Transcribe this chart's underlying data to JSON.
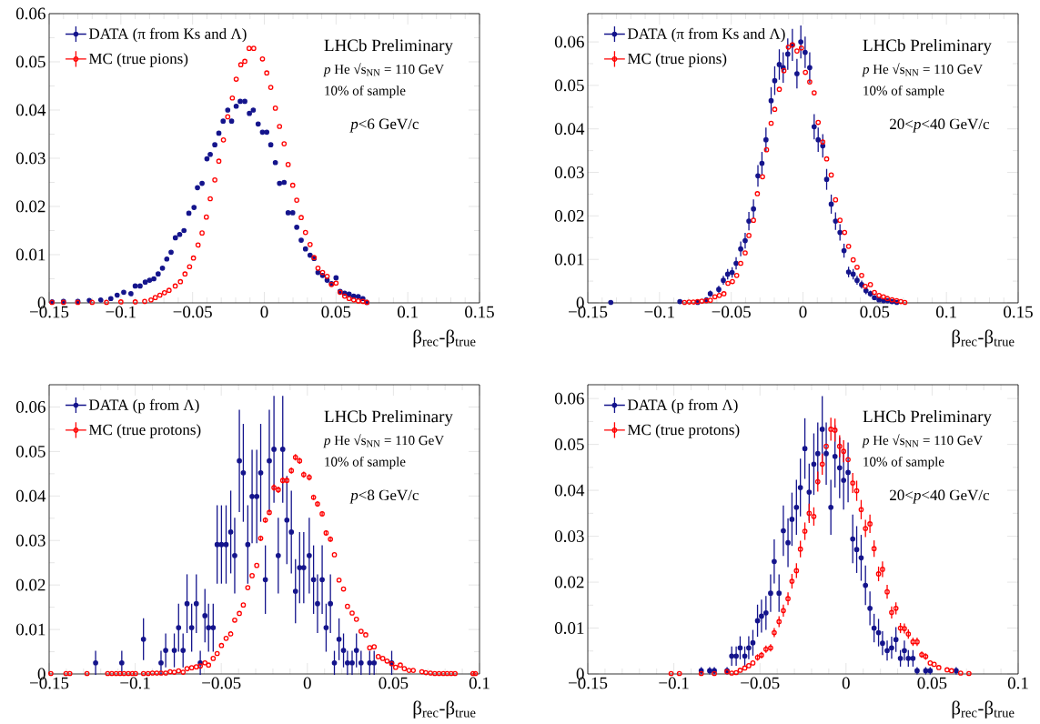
{
  "chart_data": [
    {
      "type": "scatter",
      "xlabel": "β$_{rec}$-β$_{true}$",
      "legend": "top left",
      "marker": "circle",
      "xlim": [
        -0.15,
        0.15
      ],
      "ylim": [
        0,
        0.06
      ],
      "xticks": [
        {
          "value": -0.15,
          "label": "−0.15"
        },
        {
          "value": -0.1,
          "label": "−0.1"
        },
        {
          "value": -0.05,
          "label": "−0.05"
        },
        0,
        0.05,
        0.1,
        0.15
      ],
      "yticks": [
        0,
        0.01,
        0.02,
        0.03,
        0.04,
        0.05,
        0.06
      ],
      "annotations": [
        "LHCb Preliminary",
        "*p* He √s$_{NN}$ = 110 GeV",
        "10% of sample",
        "*p*<6 GeV/c"
      ],
      "series": [
        {
          "name": "DATA (π from Ks and Λ)",
          "color": "#14148c",
          "x": [
            -0.148,
            -0.14,
            -0.13,
            -0.122,
            -0.114,
            -0.107,
            -0.1026,
            -0.098,
            -0.093,
            -0.09,
            -0.0866,
            -0.083,
            -0.08,
            -0.077,
            -0.074,
            -0.071,
            -0.068,
            -0.065,
            -0.062,
            -0.059,
            -0.056,
            -0.0526,
            -0.049,
            -0.0466,
            -0.0434,
            -0.04,
            -0.0377,
            -0.0345,
            -0.0317,
            -0.0287,
            -0.0255,
            -0.0228,
            -0.0196,
            -0.0168,
            -0.0136,
            -0.0104,
            -0.0077,
            -0.0043,
            -0.0013,
            0.0017,
            0.0045,
            0.0077,
            0.0106,
            0.0138,
            0.0166,
            0.0198,
            0.0226,
            0.0257,
            0.0287,
            0.0319,
            0.0347,
            0.0374,
            0.0406,
            0.0438,
            0.0468,
            0.05,
            0.0528,
            0.056,
            0.0591,
            0.0623,
            0.0655,
            0.0687,
            0.0715
          ],
          "values": [
            0.0002,
            0.0003,
            0.0003,
            0.0005,
            0.0006,
            0.0009,
            0.0016,
            0.0022,
            0.0019,
            0.0035,
            0.0035,
            0.0043,
            0.0047,
            0.005,
            0.006,
            0.0072,
            0.0091,
            0.0105,
            0.0135,
            0.0142,
            0.015,
            0.0186,
            0.0198,
            0.0239,
            0.0248,
            0.0299,
            0.0308,
            0.0328,
            0.0352,
            0.0377,
            0.04,
            0.0377,
            0.0408,
            0.0418,
            0.0418,
            0.0393,
            0.04,
            0.0371,
            0.0354,
            0.0354,
            0.0328,
            0.0291,
            0.0248,
            0.025,
            0.0187,
            0.0187,
            0.0157,
            0.013,
            0.0112,
            0.0099,
            0.0092,
            0.0063,
            0.0057,
            0.0047,
            0.004,
            0.0052,
            0.0024,
            0.002,
            0.0018,
            0.0014,
            0.0013,
            0.0009,
            0.0001
          ]
        },
        {
          "name": "MC (true pions)",
          "color": "#ff0000",
          "x": [
            -0.148,
            -0.14,
            -0.13,
            -0.12,
            -0.11,
            -0.1,
            -0.09,
            -0.0834,
            -0.079,
            -0.076,
            -0.0728,
            -0.0696,
            -0.0664,
            -0.0621,
            -0.0585,
            -0.0553,
            -0.0521,
            -0.0494,
            -0.0462,
            -0.0434,
            -0.0404,
            -0.0377,
            -0.0345,
            -0.0317,
            -0.0285,
            -0.0255,
            -0.0223,
            -0.0196,
            -0.0164,
            -0.0136,
            -0.0106,
            -0.0074,
            -0.0013,
            0.0017,
            0.0045,
            0.0077,
            0.0106,
            0.0138,
            0.0166,
            0.0198,
            0.0226,
            0.0257,
            0.0287,
            0.0319,
            0.0347,
            0.0374,
            0.0406,
            0.0438,
            0.0468,
            0.05,
            0.0528,
            0.056,
            0.0591,
            0.0623,
            0.0655,
            0.0687,
            0.0715
          ],
          "values": [
            0.0001,
            0.0001,
            0.0001,
            0.0001,
            0.0001,
            0.0002,
            0.0002,
            0.0003,
            0.0006,
            0.0011,
            0.0016,
            0.0021,
            0.0026,
            0.0035,
            0.0044,
            0.006,
            0.0075,
            0.0093,
            0.012,
            0.0145,
            0.0178,
            0.0216,
            0.0255,
            0.0294,
            0.0338,
            0.0386,
            0.0425,
            0.0464,
            0.0494,
            0.0501,
            0.0528,
            0.0528,
            0.0506,
            0.0477,
            0.0447,
            0.0404,
            0.0366,
            0.033,
            0.0287,
            0.0244,
            0.0213,
            0.0177,
            0.0146,
            0.0121,
            0.0094,
            0.0072,
            0.0063,
            0.0055,
            0.0038,
            0.0041,
            0.0022,
            0.0014,
            0.0009,
            0.0006,
            0.0004,
            0.0003,
            0.0001
          ]
        }
      ]
    },
    {
      "type": "scatter",
      "xlabel": "β$_{rec}$-β$_{true}$",
      "legend": "top left",
      "marker": "circle",
      "xlim": [
        -0.15,
        0.15
      ],
      "ylim": [
        0,
        0.0665
      ],
      "xticks": [
        {
          "value": -0.15,
          "label": "−0.15"
        },
        {
          "value": -0.1,
          "label": "−0.1"
        },
        {
          "value": -0.05,
          "label": "−0.05"
        },
        0,
        0.05,
        0.1,
        0.15
      ],
      "yticks": [
        0,
        0.01,
        0.02,
        0.03,
        0.04,
        0.05,
        0.06
      ],
      "annotations": [
        "LHCb Preliminary",
        "*p* He √s$_{NN}$ = 110 GeV",
        "10% of sample",
        "20<*p*<40 GeV/c"
      ],
      "series": [
        {
          "name": "DATA (π from Ks and Λ)",
          "color": "#14148c",
          "x": [
            -0.134,
            -0.0858,
            -0.0735,
            -0.0674,
            -0.0646,
            -0.0587,
            -0.0555,
            -0.0525,
            -0.0494,
            -0.0466,
            -0.0434,
            -0.0403,
            -0.0377,
            -0.0345,
            -0.0314,
            -0.0286,
            -0.0258,
            -0.0222,
            -0.0197,
            -0.0165,
            -0.0138,
            -0.0106,
            -0.0074,
            -0.0042,
            -0.0015,
            0.0015,
            0.0047,
            0.0078,
            0.0106,
            0.0138,
            0.0165,
            0.0197,
            0.0227,
            0.0258,
            0.0286,
            0.0318,
            0.035,
            0.0377,
            0.0409,
            0.0439,
            0.047,
            0.0498,
            0.053,
            0.0561,
            0.0589,
            0.0621,
            0.0653
          ],
          "values": [
            0.0001,
            0.0003,
            0.0001,
            0.0007,
            0.0021,
            0.0031,
            0.0052,
            0.0066,
            0.007,
            0.0091,
            0.0124,
            0.0143,
            0.0188,
            0.0216,
            0.0292,
            0.0321,
            0.0375,
            0.0465,
            0.0511,
            0.0548,
            0.0541,
            0.0572,
            0.0593,
            0.0527,
            0.06,
            0.0576,
            0.0541,
            0.0405,
            0.0375,
            0.0361,
            0.0284,
            0.0227,
            0.0188,
            0.0162,
            0.012,
            0.0071,
            0.0066,
            0.0052,
            0.0042,
            0.0028,
            0.0021,
            0.0012,
            0.0007,
            0.0005,
            0.0005,
            0.0003,
            0.0001
          ],
          "errors": [
            null,
            null,
            null,
            null,
            0.0007,
            0.0008,
            0.001,
            0.0012,
            0.0012,
            0.0014,
            0.0017,
            0.0018,
            0.0021,
            0.0022,
            0.0025,
            0.0026,
            0.0028,
            0.0031,
            0.0033,
            0.0035,
            0.0035,
            0.0036,
            0.0037,
            0.0034,
            0.0038,
            0.0036,
            0.0035,
            0.0029,
            0.0028,
            0.0027,
            0.0024,
            0.0022,
            0.002,
            0.0019,
            0.0016,
            0.0012,
            0.0012,
            0.001,
            0.0009,
            0.0008,
            0.0007,
            null,
            null,
            null,
            null,
            null,
            null
          ]
        },
        {
          "name": "MC (true pions)",
          "color": "#ff0000",
          "x": [
            -0.0826,
            -0.0794,
            -0.0764,
            -0.0735,
            -0.0705,
            -0.0674,
            -0.0646,
            -0.0614,
            -0.0583,
            -0.0551,
            -0.0523,
            -0.0492,
            -0.0462,
            -0.0434,
            -0.0403,
            -0.0377,
            -0.0345,
            -0.0318,
            -0.0282,
            -0.0254,
            -0.0222,
            -0.0197,
            -0.0165,
            -0.0133,
            -0.0102,
            -0.0074,
            -0.0042,
            -0.0011,
            0.0017,
            0.0047,
            0.0078,
            0.0106,
            0.0138,
            0.0165,
            0.0197,
            0.0227,
            0.0258,
            0.029,
            0.0318,
            0.035,
            0.0377,
            0.0409,
            0.0434,
            0.047,
            0.0498,
            0.053,
            0.0561,
            0.0589,
            0.0621,
            0.0653,
            0.0682,
            0.071
          ],
          "values": [
            0.0001,
            0.0002,
            0.0002,
            0.0003,
            0.0004,
            0.0005,
            0.0006,
            0.0014,
            0.0017,
            0.0021,
            0.0045,
            0.0049,
            0.0063,
            0.0091,
            0.0115,
            0.0155,
            0.019,
            0.0251,
            0.029,
            0.0352,
            0.0413,
            0.0445,
            0.0491,
            0.0534,
            0.0588,
            0.0593,
            0.0579,
            0.0586,
            0.053,
            0.0508,
            0.0483,
            0.0415,
            0.037,
            0.0331,
            0.0294,
            0.0237,
            0.019,
            0.0162,
            0.013,
            0.0099,
            0.0082,
            0.0063,
            0.0038,
            0.0042,
            0.0024,
            0.0017,
            0.0014,
            0.001,
            0.0007,
            0.0005,
            0.0003,
            0.0001
          ]
        }
      ]
    },
    {
      "type": "scatter",
      "xlabel": "β$_{rec}$-β$_{true}$",
      "legend": "top left",
      "marker": "circle",
      "xlim": [
        -0.15,
        0.1
      ],
      "ylim": [
        0,
        0.065
      ],
      "xticks": [
        {
          "value": -0.15,
          "label": "−0.15"
        },
        {
          "value": -0.1,
          "label": "−0.1"
        },
        {
          "value": -0.05,
          "label": "−0.05"
        },
        0,
        0.05,
        0.1
      ],
      "yticks": [
        0,
        0.01,
        0.02,
        0.03,
        0.04,
        0.05,
        0.06
      ],
      "annotations": [
        "LHCb Preliminary",
        "*p* He √s$_{NN}$ = 110 GeV",
        "10% of sample",
        "*p*<8 GeV/c"
      ],
      "series": [
        {
          "name": "DATA (p from Λ)",
          "color": "#14148c",
          "x": [
            -0.123,
            -0.1078,
            -0.0952,
            -0.085,
            -0.0823,
            -0.0773,
            -0.0748,
            -0.0722,
            -0.0699,
            -0.0672,
            -0.0645,
            -0.0622,
            -0.0595,
            -0.0574,
            -0.0547,
            -0.0524,
            -0.0499,
            -0.0472,
            -0.0445,
            -0.0422,
            -0.0395,
            -0.0372,
            -0.0346,
            -0.0321,
            -0.0294,
            -0.0271,
            -0.0244,
            -0.0221,
            -0.0194,
            -0.0169,
            -0.0143,
            -0.0119,
            -0.0093,
            -0.0069,
            -0.0045,
            -0.0021,
            0.0011,
            0.0036,
            0.0059,
            0.0086,
            0.0109,
            0.0134,
            0.0157,
            0.0184,
            0.021,
            0.0233,
            0.026,
            0.0285,
            0.0312,
            0.0362,
            0.0388,
            0.049
          ],
          "values": [
            0.0025,
            0.0025,
            0.0078,
            0.0025,
            0.0053,
            0.0053,
            0.0104,
            0.0053,
            0.0158,
            0.0104,
            0.0158,
            0.0025,
            0.0131,
            0.0104,
            0.0104,
            0.0291,
            0.0291,
            0.0291,
            0.0319,
            0.0266,
            0.0479,
            0.0452,
            0.0291,
            0.0399,
            0.0399,
            0.0452,
            0.0212,
            0.0479,
            0.0505,
            0.0266,
            0.0505,
            0.0346,
            0.0319,
            0.0186,
            0.0239,
            0.0239,
            0.0266,
            0.0212,
            0.0158,
            0.0212,
            0.0104,
            0.0158,
            0.0025,
            0.0078,
            0.0053,
            0.0025,
            0.0025,
            0.0053,
            0.0025,
            0.0025,
            0.0025,
            0.0025
          ],
          "errors": [
            0.0027,
            0.0027,
            0.0047,
            0.0027,
            0.0038,
            0.0038,
            0.0054,
            0.0038,
            0.0066,
            0.0054,
            0.0066,
            0.0027,
            0.006,
            0.0054,
            0.0054,
            0.0088,
            0.0088,
            0.0088,
            0.0093,
            0.0085,
            0.0115,
            0.011,
            0.0088,
            0.0105,
            0.0105,
            0.011,
            0.0077,
            0.0115,
            0.012,
            0.0085,
            0.012,
            0.0099,
            0.0093,
            0.0072,
            0.008,
            0.008,
            0.0085,
            0.0077,
            0.0066,
            0.0077,
            0.0054,
            0.0066,
            0.0027,
            0.0047,
            0.0038,
            0.0027,
            0.0027,
            0.0038,
            0.0027,
            0.0027,
            0.0027,
            0.0027
          ]
        },
        {
          "name": "MC (true protons)",
          "color": "#ff0000",
          "x": [
            -0.149,
            -0.1402,
            -0.138,
            -0.128,
            -0.116,
            -0.1136,
            -0.1111,
            -0.1088,
            -0.1065,
            -0.104,
            -0.1017,
            -0.0998,
            -0.0952,
            -0.0925,
            -0.09,
            -0.0875,
            -0.085,
            -0.0823,
            -0.0797,
            -0.0773,
            -0.0748,
            -0.0722,
            -0.0699,
            -0.0672,
            -0.0645,
            -0.0622,
            -0.0595,
            -0.0574,
            -0.0547,
            -0.0524,
            -0.0499,
            -0.0472,
            -0.0445,
            -0.0422,
            -0.0395,
            -0.0372,
            -0.0346,
            -0.0321,
            -0.0294,
            -0.0271,
            -0.0244,
            -0.0221,
            -0.0194,
            -0.0169,
            -0.0143,
            -0.0119,
            -0.0093,
            -0.0069,
            -0.0045,
            -0.0021,
            0.0011,
            0.0036,
            0.0059,
            0.0086,
            0.0109,
            0.0134,
            0.0157,
            0.0184,
            0.021,
            0.0233,
            0.026,
            0.0285,
            0.0312,
            0.0339,
            0.0362,
            0.0388,
            0.0412,
            0.0438,
            0.0463,
            0.049,
            0.0513,
            0.054,
            0.0563,
            0.059,
            0.0615,
            0.0665,
            0.0688,
            0.0715,
            0.074,
            0.0765,
            0.079,
            0.0812,
            0.0835,
            0.0858,
            0.0962,
            0.0976
          ],
          "values": [
            0.0001,
            0.0001,
            0.0001,
            0.0001,
            0.0001,
            0.0001,
            0.0001,
            0.0001,
            0.0001,
            0.0001,
            0.0001,
            0.0001,
            0.0001,
            0.0001,
            0.0002,
            0.0002,
            0.0002,
            0.0002,
            0.0005,
            0.0004,
            0.0007,
            0.0004,
            0.0012,
            0.0014,
            0.0016,
            0.0018,
            0.0025,
            0.002,
            0.0035,
            0.0046,
            0.0064,
            0.008,
            0.009,
            0.0121,
            0.0136,
            0.0155,
            0.0194,
            0.0221,
            0.0244,
            0.0305,
            0.0346,
            0.0363,
            0.0419,
            0.0414,
            0.0435,
            0.0435,
            0.0457,
            0.0487,
            0.0479,
            0.0448,
            0.0442,
            0.0397,
            0.0382,
            0.036,
            0.0317,
            0.0303,
            0.0268,
            0.0211,
            0.0191,
            0.0152,
            0.0137,
            0.0123,
            0.0096,
            0.0088,
            0.0059,
            0.0061,
            0.0039,
            0.0035,
            0.0029,
            0.0023,
            0.0015,
            0.002,
            0.0012,
            0.0008,
            0.0008,
            0.0005,
            0.0003,
            0.0002,
            0.0001,
            0.0001,
            0.0001,
            0.0001,
            0.0001,
            0.0001,
            0.0001,
            0.0001
          ],
          "errors": [
            null,
            null,
            null,
            null,
            null,
            null,
            null,
            null,
            null,
            null,
            null,
            null,
            null,
            null,
            null,
            null,
            null,
            null,
            null,
            null,
            null,
            null,
            null,
            null,
            null,
            null,
            null,
            null,
            null,
            null,
            null,
            null,
            null,
            null,
            null,
            null,
            null,
            null,
            null,
            0.0006,
            0.0006,
            0.0006,
            0.0007,
            0.0007,
            0.0007,
            0.0007,
            0.0007,
            0.0007,
            0.0007,
            0.0007,
            0.0007,
            0.0006,
            0.0006,
            0.0006,
            0.0006,
            0.0006,
            null,
            null,
            null,
            null,
            null,
            null,
            null,
            null,
            null,
            null,
            null,
            null,
            null,
            null,
            null,
            null,
            null,
            null,
            null,
            null,
            null,
            null,
            null,
            null,
            null,
            null,
            null,
            null,
            null,
            null
          ]
        }
      ]
    },
    {
      "type": "scatter",
      "xlabel": "β$_{rec}$-β$_{true}$",
      "legend": "top left",
      "marker": "circle",
      "xlim": [
        -0.15,
        0.1
      ],
      "ylim": [
        0,
        0.063
      ],
      "xticks": [
        {
          "value": -0.15,
          "label": "−0.15"
        },
        {
          "value": -0.1,
          "label": "−0.1"
        },
        {
          "value": -0.05,
          "label": "−0.05"
        },
        0,
        0.05,
        0.1
      ],
      "yticks": [
        0,
        0.01,
        0.02,
        0.03,
        0.04,
        0.05,
        0.06
      ],
      "annotations": [
        "LHCb Preliminary",
        "*p* He √s$_{NN}$ = 110 GeV",
        "10% of sample",
        "20<*p*<40 GeV/c"
      ],
      "series": [
        {
          "name": "DATA (p from Λ)",
          "color": "#14148c",
          "x": [
            -0.0841,
            -0.0792,
            -0.0765,
            -0.0691,
            -0.0664,
            -0.0638,
            -0.0615,
            -0.0588,
            -0.0565,
            -0.0541,
            -0.0514,
            -0.0491,
            -0.0465,
            -0.0438,
            -0.0417,
            -0.0389,
            -0.0364,
            -0.0337,
            -0.0314,
            -0.0288,
            -0.0265,
            -0.0239,
            -0.0214,
            -0.0187,
            -0.0164,
            -0.0138,
            -0.0115,
            -0.0088,
            -0.0064,
            -0.0037,
            -0.0014,
            0.0012,
            0.0039,
            0.0062,
            0.0088,
            0.0113,
            0.0139,
            0.0163,
            0.0189,
            0.0212,
            0.0239,
            0.0265,
            0.029,
            0.0316,
            0.0339,
            0.0362,
            0.0389,
            0.0413,
            0.0463,
            0.0489,
            0.064
          ],
          "values": [
            0.0007,
            0.0007,
            0.0007,
            0.0007,
            0.0039,
            0.0039,
            0.0057,
            0.0039,
            0.0057,
            0.0068,
            0.0116,
            0.0126,
            0.0133,
            0.0176,
            0.0245,
            0.0176,
            0.0312,
            0.0286,
            0.0337,
            0.0363,
            0.0406,
            0.0491,
            0.0396,
            0.0457,
            0.048,
            0.0533,
            0.048,
            0.0363,
            0.0474,
            0.0449,
            0.0422,
            0.0439,
            0.0294,
            0.0271,
            0.0253,
            0.0193,
            0.0143,
            0.01,
            0.009,
            0.0067,
            0.0051,
            0.0057,
            0.0075,
            0.0034,
            0.0051,
            0.0034,
            0.0034,
            0.0007,
            0.0007,
            0.0007,
            0.0007
          ],
          "errors": [
            0.0008,
            0.0008,
            0.0008,
            0.0008,
            0.0021,
            0.0021,
            0.0025,
            0.0021,
            0.0025,
            0.0028,
            0.0035,
            0.0036,
            0.0037,
            0.0041,
            0.0048,
            0.0041,
            0.0055,
            0.0053,
            0.0058,
            0.006,
            0.0063,
            0.0066,
            0.0062,
            0.0067,
            0.0068,
            0.0072,
            0.0068,
            0.006,
            0.0068,
            0.0066,
            0.0064,
            0.0065,
            0.0053,
            0.0051,
            0.005,
            0.0043,
            0.0037,
            0.0031,
            0.003,
            0.0026,
            0.0022,
            0.0024,
            0.0027,
            0.0018,
            0.0022,
            0.0018,
            0.0018,
            0.0008,
            0.0008,
            0.0008,
            0.0008
          ]
        },
        {
          "name": "MC (true protons)",
          "color": "#ff0000",
          "x": [
            -0.1016,
            -0.0968,
            -0.0841,
            -0.0765,
            -0.0691,
            -0.0664,
            -0.0638,
            -0.0615,
            -0.0588,
            -0.0565,
            -0.0541,
            -0.0514,
            -0.0491,
            -0.0465,
            -0.0438,
            -0.0417,
            -0.0389,
            -0.0364,
            -0.0337,
            -0.0314,
            -0.0288,
            -0.0265,
            -0.0239,
            -0.0214,
            -0.0187,
            -0.0164,
            -0.0138,
            -0.0115,
            -0.0088,
            -0.0064,
            -0.0037,
            -0.0014,
            0.0012,
            0.0039,
            0.0062,
            0.0088,
            0.0113,
            0.0139,
            0.0163,
            0.0189,
            0.0212,
            0.0239,
            0.0265,
            0.029,
            0.0316,
            0.0339,
            0.0362,
            0.0389,
            0.0413,
            0.044,
            0.0463,
            0.0489,
            0.0512,
            0.0539,
            0.0587,
            0.0613,
            0.0666,
            0.0714
          ],
          "values": [
            0.0001,
            0.0001,
            0.0001,
            0.0001,
            0.0005,
            0.0002,
            0.0003,
            0.0008,
            0.0013,
            0.0018,
            0.0024,
            0.0036,
            0.0041,
            0.0054,
            0.0057,
            0.009,
            0.0114,
            0.0138,
            0.0164,
            0.0202,
            0.0225,
            0.0272,
            0.0311,
            0.035,
            0.0343,
            0.0419,
            0.0457,
            0.0496,
            0.0533,
            0.0531,
            0.0496,
            0.0485,
            0.0467,
            0.0416,
            0.0399,
            0.0358,
            0.0317,
            0.0327,
            0.0273,
            0.0218,
            0.0228,
            0.0179,
            0.0134,
            0.0143,
            0.01,
            0.0099,
            0.0087,
            0.007,
            0.007,
            0.0042,
            0.0038,
            0.0024,
            0.0021,
            0.0014,
            0.0009,
            0.0007,
            0.0002,
            0.0001
          ],
          "errors": [
            null,
            null,
            null,
            null,
            null,
            null,
            null,
            null,
            null,
            null,
            null,
            0.0007,
            0.0007,
            0.0008,
            0.0008,
            0.001,
            0.0012,
            0.0013,
            0.0014,
            0.0016,
            0.0016,
            0.0018,
            0.0019,
            0.0021,
            0.002,
            0.0022,
            0.0023,
            null,
            0.0025,
            0.0025,
            0.0024,
            0.0024,
            null,
            0.0022,
            0.0022,
            0.0021,
            0.0019,
            0.002,
            0.0018,
            0.0016,
            0.0017,
            0.0015,
            0.0013,
            0.0013,
            0.0011,
            0.0011,
            0.001,
            0.0009,
            0.0009,
            0.0007,
            0.0007,
            null,
            null,
            null,
            null,
            null,
            null,
            null
          ]
        }
      ]
    }
  ]
}
